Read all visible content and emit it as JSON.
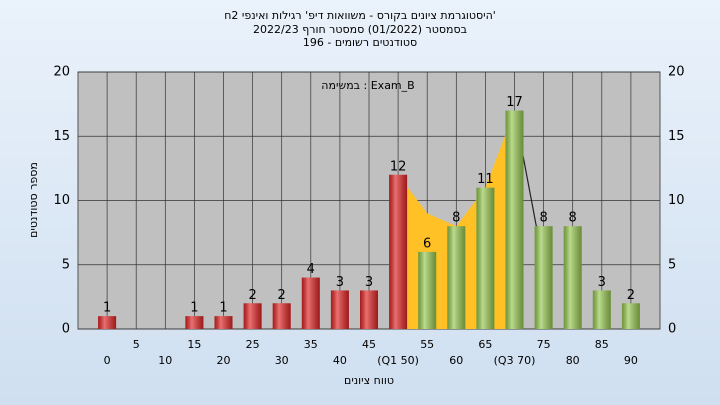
{
  "chart_data": {
    "type": "bar",
    "title": "היסטוגרמת ציונים בקורס - משוואות דיפ' רגילות ואינפי 2ח'",
    "subtitle": "בסמסטר (01/2022) סמסטר חורף 2022/23",
    "subtitle2": "סטודנטים רשומים - 196",
    "annotation": "במשימה : Exam_B",
    "x_label": "טווח ציונים",
    "y_label": "מספר סטודנטים",
    "categories": [
      "0",
      "5",
      "10",
      "15",
      "20",
      "25",
      "30",
      "35",
      "40",
      "45",
      "(Q1 50)",
      "55",
      "60",
      "65",
      "(Q3 70)",
      "75",
      "80",
      "85",
      "90"
    ],
    "values": [
      1,
      0,
      0,
      1,
      1,
      2,
      2,
      4,
      3,
      3,
      12,
      6,
      8,
      11,
      17,
      8,
      8,
      3,
      2
    ],
    "bar_colors": [
      "#e02424",
      "#e02424",
      "#e02424",
      "#e02424",
      "#e02424",
      "#e02424",
      "#e02424",
      "#e02424",
      "#e02424",
      "#e02424",
      "#e02424",
      "#96c850",
      "#96c850",
      "#96c850",
      "#96c850",
      "#96c850",
      "#96c850",
      "#96c850",
      "#96c850"
    ],
    "overlay": {
      "color": "#ffc125",
      "category_index": [
        10,
        11,
        12,
        13,
        14,
        15
      ],
      "values": [
        12,
        9,
        8,
        11,
        17,
        5
      ]
    },
    "ylim": [
      0,
      20
    ],
    "yticks": [
      0,
      5,
      10,
      15,
      20
    ],
    "grid": true
  }
}
